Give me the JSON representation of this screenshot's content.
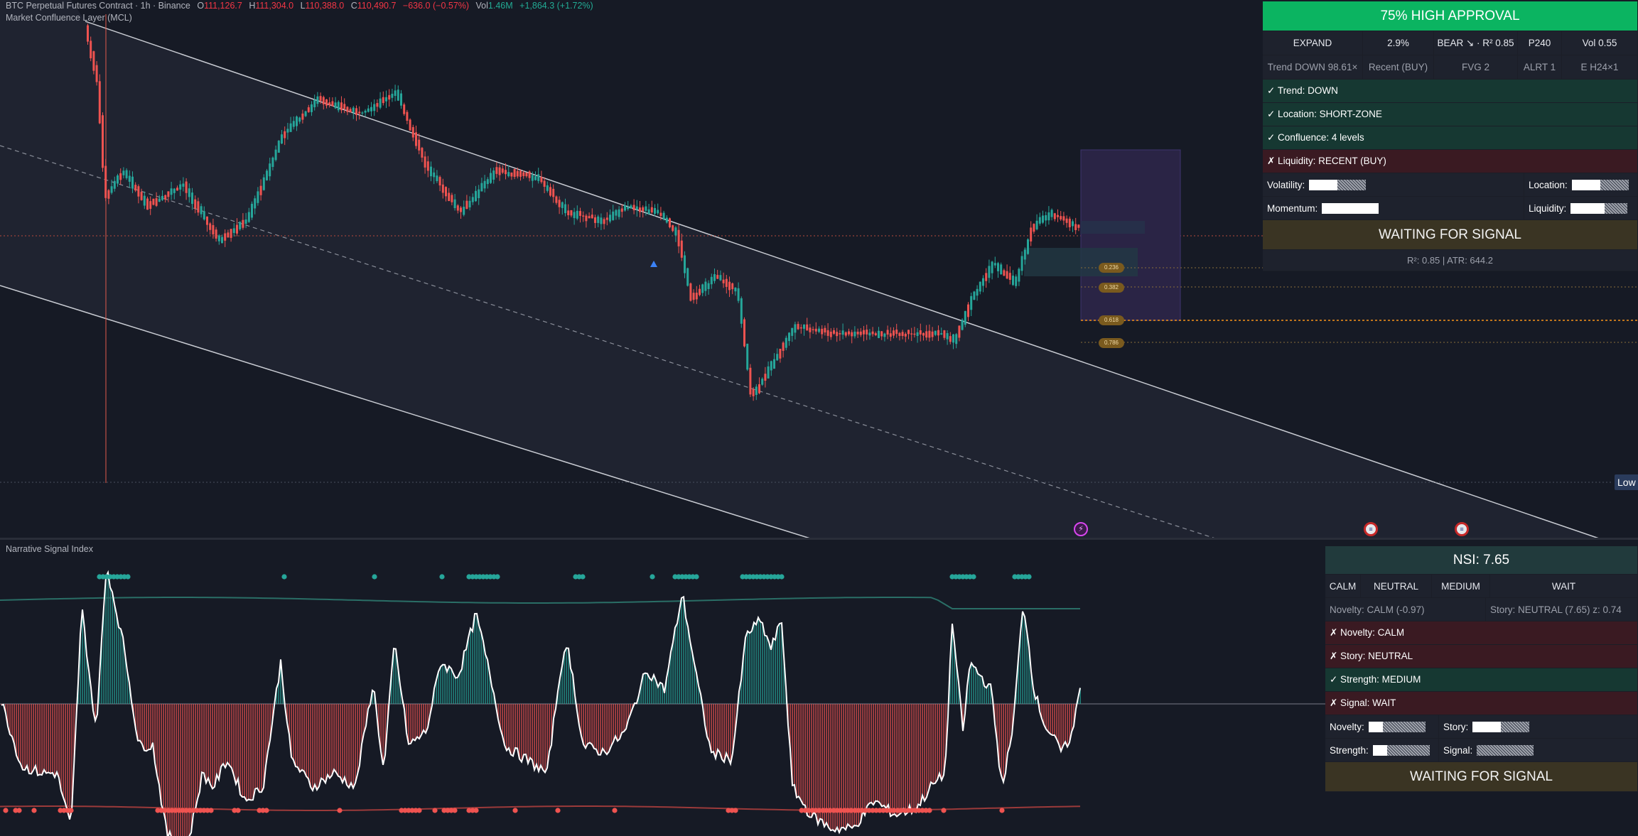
{
  "symbol_legend": {
    "title": "BTC Perpetual Futures Contract · 1h · Binance",
    "o_label": "O",
    "o": "111,126.7",
    "h_label": "H",
    "h": "111,304.0",
    "l_label": "L",
    "l": "110,388.0",
    "c_label": "C",
    "c": "110,490.7",
    "change": "−636.0 (−0.57%)",
    "vol_label": "Vol",
    "vol": "1.46M",
    "vol_change": "+1,864.3 (+1.72%)"
  },
  "indicator_top": "Market Confluence Layer (MCL)",
  "indicator_bottom": "Narrative Signal Index",
  "fib_labels": [
    "0.236",
    "0.382",
    "0.618",
    "0.786"
  ],
  "low_tag": "Low",
  "mcl_panel": {
    "banner": "75% HIGH APPROVAL",
    "header_row": [
      "EXPAND",
      "2.9%",
      "BEAR ↘ · R² 0.85",
      "P240",
      "Vol 0.55"
    ],
    "sub_row": [
      "Trend DOWN 98.61×",
      "Recent (BUY)",
      "FVG 2",
      "ALRT 1",
      "E H24×1"
    ],
    "checks": [
      {
        "text": "✓ Trend: DOWN",
        "ok": true
      },
      {
        "text": "✓ Location: SHORT-ZONE",
        "ok": true
      },
      {
        "text": "✓ Confluence: 4 levels",
        "ok": true
      },
      {
        "text": "✗ Liquidity: RECENT (BUY)",
        "ok": false
      }
    ],
    "meters": [
      {
        "left_label": "Volatility:",
        "left_fill": 0.5,
        "right_label": "Location:",
        "right_fill": 0.5
      },
      {
        "left_label": "Momentum:",
        "left_fill": 1.0,
        "right_label": "Liquidity:",
        "right_fill": 0.6
      }
    ],
    "status": "WAITING FOR SIGNAL",
    "footer": "R²: 0.85 | ATR: 644.2"
  },
  "nsi_panel": {
    "title": "NSI: 7.65",
    "header_row": [
      "CALM",
      "NEUTRAL",
      "MEDIUM",
      "WAIT"
    ],
    "sub_row": [
      "Novelty: CALM (-0.97)",
      "Story: NEUTRAL (7.65)  z: 0.74"
    ],
    "checks": [
      {
        "text": "✗ Novelty: CALM",
        "ok": false
      },
      {
        "text": "✗ Story: NEUTRAL",
        "ok": false
      },
      {
        "text": "✓ Strength: MEDIUM",
        "ok": true
      },
      {
        "text": "✗ Signal: WAIT",
        "ok": false
      }
    ],
    "meters": [
      {
        "left_label": "Novelty:",
        "left_fill": 0.25,
        "right_label": "Story:",
        "right_fill": 0.5
      },
      {
        "left_label": "Strength:",
        "left_fill": 0.25,
        "right_label": "Signal:",
        "right_fill": 0.0
      }
    ],
    "status": "WAITING FOR SIGNAL"
  },
  "colors": {
    "bull": "#26a69a",
    "bear": "#ef5350",
    "approval_green": "#0bb461",
    "fib_orange": "#f7931a",
    "channel": "#c9ccd3"
  },
  "icons": [
    "calendar-flag-icon",
    "calendar-flag-icon",
    "lightning-event-icon",
    "signal-triangle-icon"
  ]
}
